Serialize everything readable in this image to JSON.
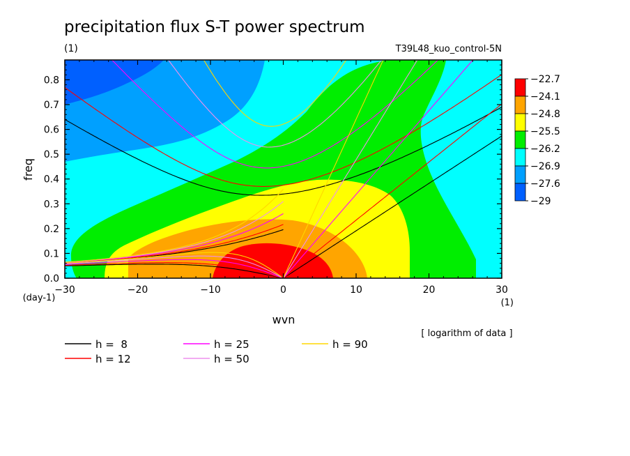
{
  "chart_data": {
    "type": "heatmap",
    "title": "precipitation flux S-T power spectrum",
    "subtitle_left": "(1)",
    "subtitle_right": "T39L48_kuo_control-5N",
    "xlabel": "wvn",
    "ylabel": "freq",
    "x_unit": "(1)",
    "y_unit": "(day-1)",
    "xlim": [
      -30,
      30
    ],
    "ylim": [
      0,
      0.88
    ],
    "xticks": [
      -30,
      -20,
      -10,
      0,
      10,
      20,
      30
    ],
    "yticks": [
      0.0,
      0.1,
      0.2,
      0.3,
      0.4,
      0.5,
      0.6,
      0.7,
      0.8
    ],
    "note": "[ logarithm of data ]",
    "colorbar": {
      "levels": [
        "-22.7",
        "-24.1",
        "-24.8",
        "-25.5",
        "-26.2",
        "-26.9",
        "-27.6",
        "-29"
      ],
      "colors": [
        "#ff0000",
        "#ffa500",
        "#ffff00",
        "#00ee00",
        "#00ffff",
        "#00a0ff",
        "#0060ff"
      ]
    },
    "dispersion_curves": [
      {
        "label": "h =  8",
        "h": 8,
        "color": "#000000"
      },
      {
        "label": "h = 12",
        "h": 12,
        "color": "#ff0000"
      },
      {
        "label": "h = 25",
        "h": 25,
        "color": "#ff00ff"
      },
      {
        "label": "h = 50",
        "h": 50,
        "color": "#ee90ee"
      },
      {
        "label": "h = 90",
        "h": 90,
        "color": "#ffd700"
      }
    ]
  }
}
